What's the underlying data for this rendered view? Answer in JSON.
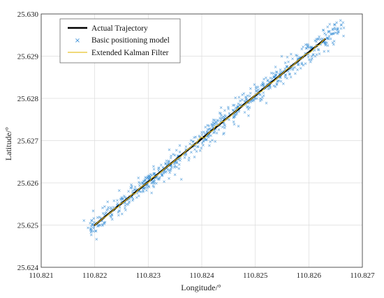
{
  "chart_data": {
    "type": "scatter",
    "xlabel": "Longitude/°",
    "ylabel": "Latitude/°",
    "xlim": [
      110.821,
      110.827
    ],
    "ylim": [
      25.624,
      25.63
    ],
    "xticks": [
      "110.821",
      "110.822",
      "110.823",
      "110.824",
      "110.825",
      "110.826",
      "110.827"
    ],
    "yticks": [
      "25.624",
      "25.625",
      "25.626",
      "25.627",
      "25.628",
      "25.629",
      "25.630"
    ],
    "grid": true,
    "legend_position": "top-left",
    "series": [
      {
        "name": "Actual Trajectory",
        "kind": "line",
        "color": "#000000",
        "x": [
          110.822,
          110.8263
        ],
        "y": [
          25.625,
          25.6294
        ]
      },
      {
        "name": "Basic positioning model",
        "kind": "scatter-x",
        "color": "#3a8fd6",
        "n_points": 700,
        "x_range": [
          110.8219,
          110.8266
        ],
        "y_noise_std": 0.00012
      },
      {
        "name": "Extended Kalman Filter",
        "kind": "line",
        "color": "#e6c229",
        "x": [
          110.822,
          110.8263
        ],
        "y": [
          25.625,
          25.6294
        ]
      }
    ]
  }
}
